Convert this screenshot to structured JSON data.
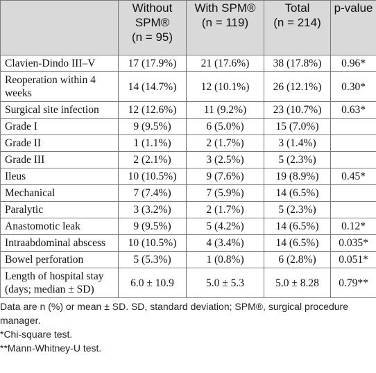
{
  "header": {
    "without_title": "Without SPM®",
    "without_n": "(n = 95)",
    "with_title": "With SPM®",
    "with_n": "(n = 119)",
    "total_title": "Total",
    "total_n": "(n = 214)",
    "pvalue": "p-value"
  },
  "rows": [
    {
      "label": "Clavien-Dindo III–V",
      "without": "17 (17.9%)",
      "with": "21 (17.6%)",
      "total": "38 (17.8%)",
      "p": "0.96*"
    },
    {
      "label": "Reoperation within 4 weeks",
      "without": "14 (14.7%)",
      "with": "12 (10.1%)",
      "total": "26 (12.1%)",
      "p": "0.30*"
    },
    {
      "label": "Surgical site infection",
      "without": "12 (12.6%)",
      "with": "11 (9.2%)",
      "total": "23 (10.7%)",
      "p": "0.63*"
    },
    {
      "label": "Grade I",
      "without": "9 (9.5%)",
      "with": "6 (5.0%)",
      "total": "15 (7.0%)",
      "p": ""
    },
    {
      "label": "Grade II",
      "without": "1 (1.1%)",
      "with": "2 (1.7%)",
      "total": "3 (1.4%)",
      "p": ""
    },
    {
      "label": "Grade III",
      "without": "2 (2.1%)",
      "with": "3 (2.5%)",
      "total": "5 (2.3%)",
      "p": ""
    },
    {
      "label": "Ileus",
      "without": "10 (10.5%)",
      "with": "9 (7.6%)",
      "total": "19 (8.9%)",
      "p": "0.45*"
    },
    {
      "label": "Mechanical",
      "without": "7 (7.4%)",
      "with": "7 (5.9%)",
      "total": "14 (6.5%)",
      "p": ""
    },
    {
      "label": "Paralytic",
      "without": "3 (3.2%)",
      "with": "2 (1.7%)",
      "total": "5 (2.3%)",
      "p": ""
    },
    {
      "label": "Anastomotic leak",
      "without": "9 (9.5%)",
      "with": "5 (4.2%)",
      "total": "14 (6.5%)",
      "p": "0.12*"
    },
    {
      "label": "Intraabdominal abscess",
      "without": "10 (10.5%)",
      "with": "4 (3.4%)",
      "total": "14 (6.5%)",
      "p": "0.035*"
    },
    {
      "label": "Bowel perforation",
      "without": "5 (5.3%)",
      "with": "1 (0.8%)",
      "total": "6 (2.8%)",
      "p": "0.051*"
    },
    {
      "label": "Length of hospital stay (days; median ± SD)",
      "without": "6.0 ± 10.9",
      "with": "5.0 ± 5.3",
      "total": "5.0 ± 8.28",
      "p": "0.79**"
    }
  ],
  "notes": {
    "line1": "Data are n (%) or mean ± SD. SD, standard deviation; SPM®, surgical procedure manager.",
    "line2": "*Chi-square test.",
    "line3": "**Mann-Whitney-U test."
  }
}
